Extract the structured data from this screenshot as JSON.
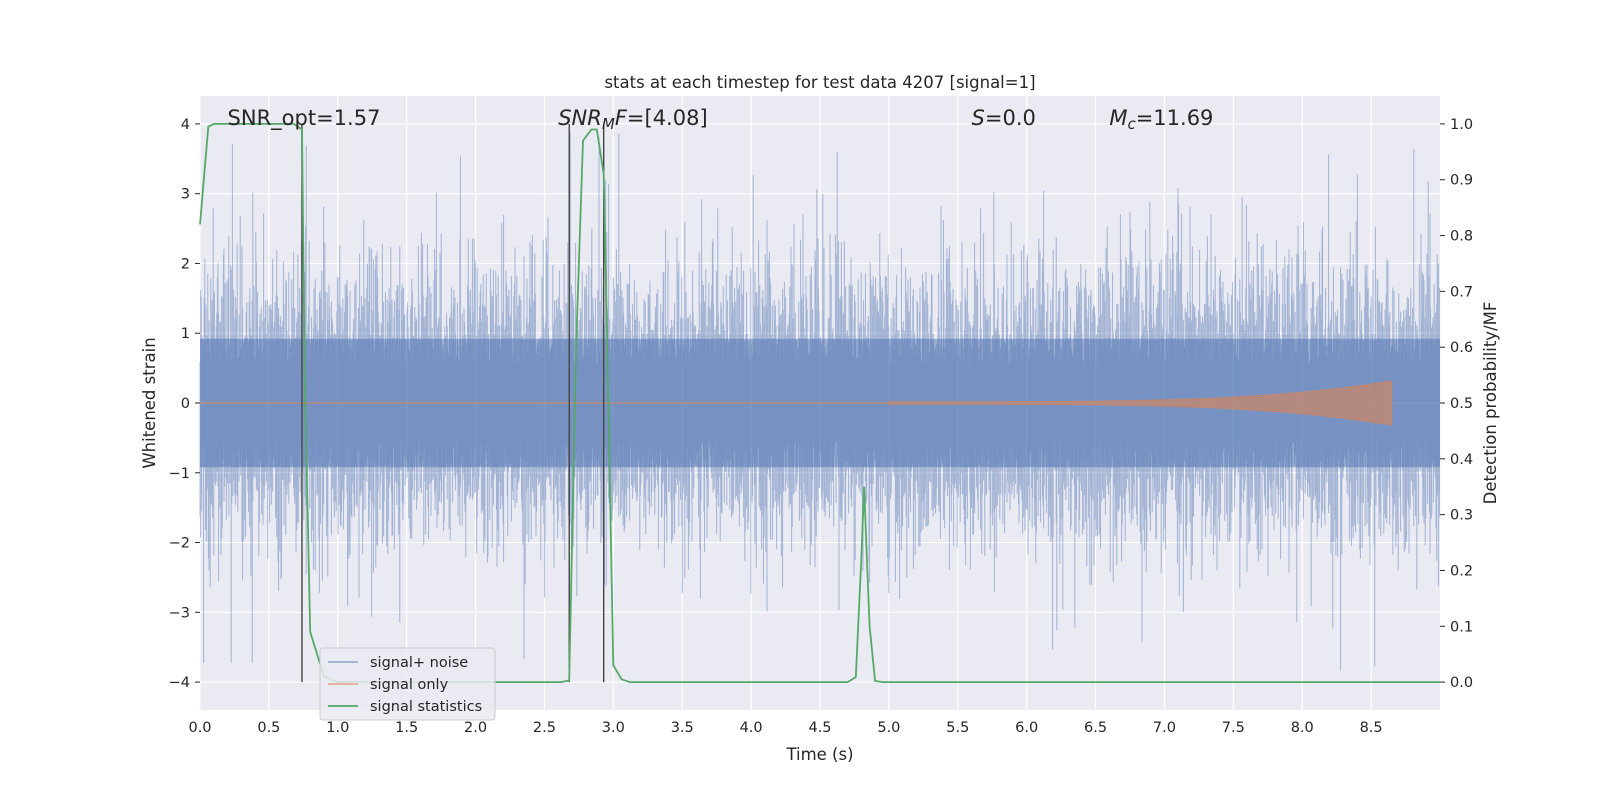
{
  "chart_data": {
    "type": "line",
    "title": "stats at each timestep for test data 4207 [signal=1]",
    "xlabel": "Time (s)",
    "ylabel": "Whitened strain",
    "y2label": "Detection probability/MF",
    "xlim": [
      0.0,
      9.0
    ],
    "ylim": [
      -4.4,
      4.4
    ],
    "y2lim": [
      -0.05,
      1.05
    ],
    "x_ticks": [
      0.0,
      0.5,
      1.0,
      1.5,
      2.0,
      2.5,
      3.0,
      3.5,
      4.0,
      4.5,
      5.0,
      5.5,
      6.0,
      6.5,
      7.0,
      7.5,
      8.0,
      8.5
    ],
    "x_tick_labels": [
      "0.0",
      "0.5",
      "1.0",
      "1.5",
      "2.0",
      "2.5",
      "3.0",
      "3.5",
      "4.0",
      "4.5",
      "5.0",
      "5.5",
      "6.0",
      "6.5",
      "7.0",
      "7.5",
      "8.0",
      "8.5"
    ],
    "y_ticks": [
      4,
      3,
      2,
      1,
      0,
      -1,
      -2,
      -3,
      -4
    ],
    "y_tick_labels": [
      "4",
      "3",
      "2",
      "1",
      "0",
      "−1",
      "−2",
      "−3",
      "−4"
    ],
    "y2_ticks": [
      1.0,
      0.9,
      0.8,
      0.7,
      0.6,
      0.5,
      0.4,
      0.3,
      0.2,
      0.1,
      0.0
    ],
    "y2_tick_labels": [
      "1.0",
      "0.9",
      "0.8",
      "0.7",
      "0.6",
      "0.5",
      "0.4",
      "0.3",
      "0.2",
      "0.1",
      "0.0"
    ],
    "grid": true,
    "legend_position": "lower-left",
    "annotations": [
      {
        "text": "SNR_opt=1.57",
        "x": 0.2,
        "y": 4.1
      },
      {
        "text": "SNR_MF=[4.08]",
        "x": 2.6,
        "y": 4.1
      },
      {
        "text": "S=0.0",
        "x": 5.6,
        "y": 4.1
      },
      {
        "text": "M_c=11.69",
        "x": 6.6,
        "y": 4.1
      }
    ],
    "vertical_lines": [
      0.74,
      2.68,
      2.93
    ],
    "vertical_line_range": [
      -4.0,
      4.0
    ],
    "series": [
      {
        "name": "signal+ noise",
        "axis": "left",
        "color": "#4c72b0",
        "kind": "noise",
        "x_range": [
          0.0,
          9.0
        ],
        "envelope_1sigma": 0.8,
        "typical_peak": 2.2,
        "extreme_peak": 3.9
      },
      {
        "name": "signal only",
        "axis": "left",
        "color": "#dd8452",
        "kind": "chirp",
        "x_range": [
          5.0,
          8.65
        ],
        "end_amplitude": 0.3
      },
      {
        "name": "signal statistics",
        "axis": "right",
        "color": "#55a868",
        "kind": "line",
        "x": [
          0.0,
          0.06,
          0.1,
          0.15,
          0.6,
          0.68,
          0.74,
          0.76,
          0.8,
          0.9,
          1.0,
          2.5,
          2.62,
          2.68,
          2.73,
          2.78,
          2.84,
          2.88,
          2.93,
          2.96,
          3.0,
          3.06,
          3.12,
          4.7,
          4.76,
          4.8,
          4.82,
          4.86,
          4.9,
          4.96,
          9.0
        ],
        "values": [
          0.82,
          0.995,
          1.0,
          1.0,
          1.0,
          1.0,
          0.99,
          0.55,
          0.09,
          0.01,
          0.0,
          0.0,
          0.0,
          0.003,
          0.6,
          0.97,
          0.99,
          0.99,
          0.91,
          0.55,
          0.03,
          0.005,
          0.0,
          0.0,
          0.009,
          0.22,
          0.35,
          0.1,
          0.002,
          0.0,
          0.0
        ]
      }
    ]
  }
}
